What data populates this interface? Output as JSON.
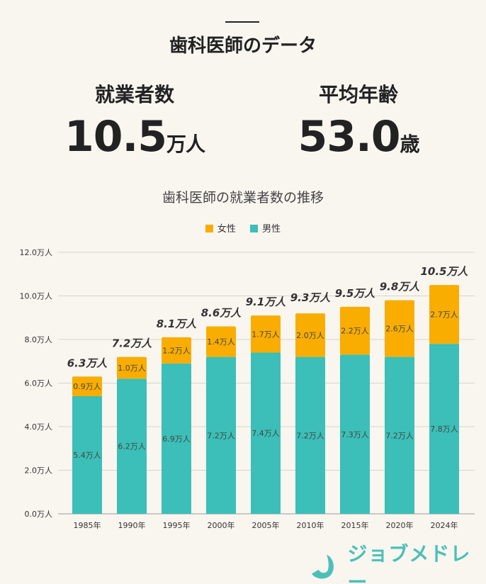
{
  "header": {
    "title": "歯科医師のデータ"
  },
  "stats": [
    {
      "label": "就業者数",
      "value": "10.5",
      "unit": "万人"
    },
    {
      "label": "平均年齢",
      "value": "53.0",
      "unit": "歳"
    }
  ],
  "logo": {
    "text": "ジョブメドレー"
  },
  "chart_data": {
    "type": "bar",
    "stacked": true,
    "title": "歯科医師の就業者数の推移",
    "categories": [
      "1985年",
      "1990年",
      "1995年",
      "2000年",
      "2005年",
      "2010年",
      "2015年",
      "2020年",
      "2024年"
    ],
    "series": [
      {
        "name": "男性",
        "color": "#3bbfb8",
        "values": [
          5.4,
          6.2,
          6.9,
          7.2,
          7.4,
          7.2,
          7.3,
          7.2,
          7.8
        ],
        "labels": [
          "5.4万人",
          "6.2万人",
          "6.9万人",
          "7.2万人",
          "7.4万人",
          "7.2万人",
          "7.3万人",
          "7.2万人",
          "7.8万人"
        ]
      },
      {
        "name": "女性",
        "color": "#f9ad00",
        "values": [
          0.9,
          1.0,
          1.2,
          1.4,
          1.7,
          2.0,
          2.2,
          2.6,
          2.7
        ],
        "labels": [
          "0.9万人",
          "1.0万人",
          "1.2万人",
          "1.4万人",
          "1.7万人",
          "2.0万人",
          "2.2万人",
          "2.6万人",
          "2.7万人"
        ]
      }
    ],
    "totals": [
      "6.3万人",
      "7.2万人",
      "8.1万人",
      "8.6万人",
      "9.1万人",
      "9.3万人",
      "9.5万人",
      "9.8万人",
      "10.5万人"
    ],
    "total_values": [
      6.3,
      7.2,
      8.1,
      8.6,
      9.1,
      9.3,
      9.5,
      9.8,
      10.5
    ],
    "yticks": [
      "0.0万人",
      "2.0万人",
      "4.0万人",
      "6.0万人",
      "8.0万人",
      "10.0万人",
      "12.0万人"
    ],
    "ylim": [
      0,
      12
    ],
    "grid": true,
    "legend": "top"
  }
}
